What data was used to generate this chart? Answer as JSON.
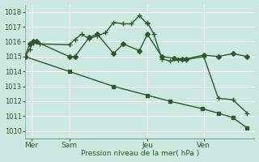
{
  "background_color": "#cce8e0",
  "plot_bg_color": "#cce8e0",
  "grid_color": "#ffffff",
  "line_color": "#2d5a2d",
  "ylabel_text": "Pression niveau de la mer( hPa )",
  "ylim": [
    1009.5,
    1018.5
  ],
  "yticks": [
    1010,
    1011,
    1012,
    1013,
    1014,
    1015,
    1016,
    1017,
    1018
  ],
  "day_labels": [
    "Mer",
    "Sam",
    "Jeu",
    "Ven"
  ],
  "day_positions": [
    8,
    55,
    152,
    222
  ],
  "vline_positions": [
    8,
    55,
    152,
    222
  ],
  "series1_x": [
    0,
    6,
    10,
    14,
    18,
    55,
    62,
    70,
    80,
    90,
    100,
    110,
    122,
    132,
    142,
    152,
    152,
    160,
    170,
    180,
    190,
    200,
    222,
    240,
    258,
    276
  ],
  "series1_y": [
    1015.0,
    1015.5,
    1015.9,
    1016.0,
    1015.85,
    1015.8,
    1016.15,
    1016.5,
    1016.2,
    1016.4,
    1016.6,
    1017.3,
    1017.2,
    1017.2,
    1017.75,
    1017.2,
    1017.3,
    1016.5,
    1014.85,
    1014.7,
    1014.8,
    1014.8,
    1015.0,
    1012.2,
    1012.1,
    1011.2
  ],
  "series2_x": [
    0,
    6,
    10,
    14,
    55,
    62,
    80,
    90,
    110,
    122,
    142,
    152,
    170,
    185,
    195,
    200,
    222,
    240,
    258,
    276
  ],
  "series2_y": [
    1015.0,
    1015.85,
    1016.0,
    1016.0,
    1015.0,
    1015.0,
    1016.3,
    1016.5,
    1015.2,
    1015.85,
    1015.4,
    1016.5,
    1015.0,
    1014.9,
    1014.85,
    1014.85,
    1015.1,
    1015.0,
    1015.2,
    1015.0
  ],
  "series3_x": [
    0,
    276
  ],
  "series3_y": [
    1015.0,
    1010.2
  ],
  "series3_markers_x": [
    0,
    55,
    110,
    152,
    180,
    220,
    240,
    258,
    276
  ],
  "series3_markers_y": [
    1015.0,
    1014.0,
    1013.0,
    1012.4,
    1012.0,
    1011.5,
    1011.2,
    1010.9,
    1010.2
  ],
  "xlim": [
    0,
    285
  ]
}
